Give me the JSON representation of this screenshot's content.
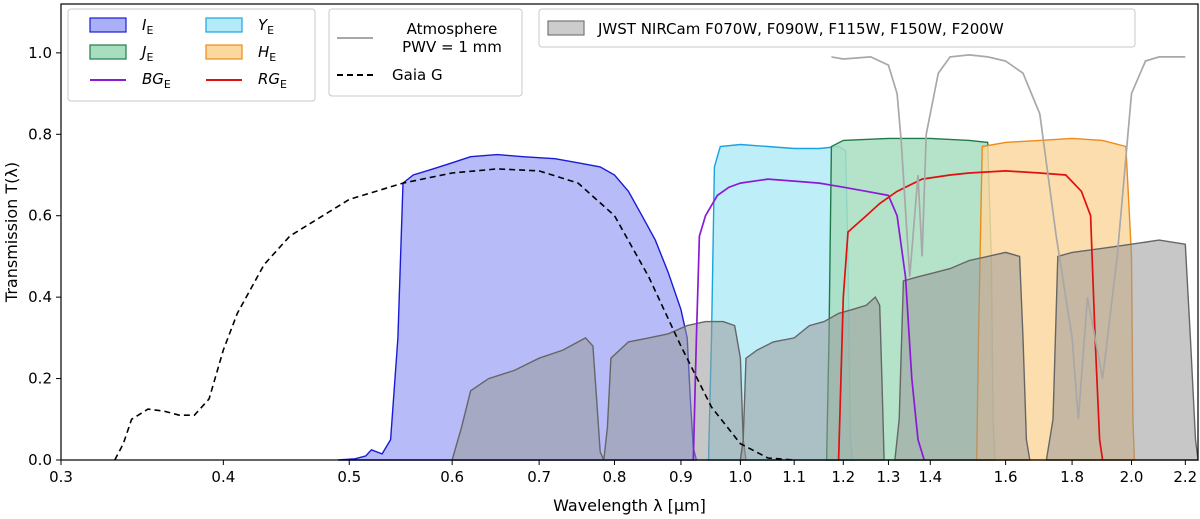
{
  "chart_data": {
    "type": "area",
    "xlabel": "Wavelength  λ [μm]",
    "ylabel": "Transmission  T(λ)",
    "xscale": "log",
    "xlim": [
      0.3,
      2.25
    ],
    "ylim": [
      0.0,
      1.12
    ],
    "grid": false,
    "x_ticks": [
      0.3,
      0.4,
      0.5,
      0.6,
      0.7,
      0.8,
      0.9,
      1.0,
      1.1,
      1.2,
      1.3,
      1.4,
      1.6,
      1.8,
      2.0,
      2.2
    ],
    "x_tick_labels": [
      "0.3",
      "0.4",
      "0.5",
      "0.6",
      "0.7",
      "0.8",
      "0.9",
      "1.0",
      "1.1",
      "1.2",
      "1.3",
      "1.4",
      "1.6",
      "1.8",
      "2.0",
      "2.2"
    ],
    "y_ticks": [
      0.0,
      0.2,
      0.4,
      0.6,
      0.8,
      1.0
    ],
    "y_tick_labels": [
      "0.0",
      "0.2",
      "0.4",
      "0.6",
      "0.8",
      "1.0"
    ],
    "legends": [
      {
        "position": "top-left",
        "entries": [
          {
            "label": "I",
            "subscript": "E",
            "kind": "area",
            "fill": "#aab0f8",
            "edge": "#1a1ad6"
          },
          {
            "label": "Y",
            "subscript": "E",
            "kind": "area",
            "fill": "#b3ecf8",
            "edge": "#1aa3e0"
          },
          {
            "label": "J",
            "subscript": "E",
            "kind": "area",
            "fill": "#a8dec0",
            "edge": "#207a47"
          },
          {
            "label": "H",
            "subscript": "E",
            "kind": "area",
            "fill": "#fbd8a0",
            "edge": "#ee8a18"
          },
          {
            "label": "BG",
            "subscript": "E",
            "kind": "line",
            "color": "#8b1ad6"
          },
          {
            "label": "RG",
            "subscript": "E",
            "kind": "line",
            "color": "#e01010"
          }
        ]
      },
      {
        "position": "top-center",
        "entries": [
          {
            "label": "Atmosphere",
            "label2": "PWV = 1 mm",
            "kind": "line",
            "color": "#a8a8a8"
          },
          {
            "label": "Gaia G",
            "kind": "dashed",
            "color": "#000000"
          }
        ]
      },
      {
        "position": "top-right",
        "entries": [
          {
            "label": "JWST NIRCam F070W, F090W, F115W, F150W, F200W",
            "kind": "area",
            "fill": "#cccccc",
            "edge": "#777777"
          }
        ]
      }
    ],
    "series": [
      {
        "name": "I_E",
        "kind": "area",
        "fill": "#aab0f8",
        "edge": "#1a1ad6",
        "points": [
          [
            0.49,
            0.0
          ],
          [
            0.505,
            0.003
          ],
          [
            0.515,
            0.01
          ],
          [
            0.52,
            0.025
          ],
          [
            0.53,
            0.015
          ],
          [
            0.538,
            0.05
          ],
          [
            0.545,
            0.3
          ],
          [
            0.55,
            0.68
          ],
          [
            0.56,
            0.7
          ],
          [
            0.58,
            0.715
          ],
          [
            0.6,
            0.73
          ],
          [
            0.62,
            0.745
          ],
          [
            0.65,
            0.75
          ],
          [
            0.68,
            0.745
          ],
          [
            0.72,
            0.74
          ],
          [
            0.75,
            0.73
          ],
          [
            0.78,
            0.72
          ],
          [
            0.8,
            0.7
          ],
          [
            0.82,
            0.66
          ],
          [
            0.84,
            0.6
          ],
          [
            0.86,
            0.54
          ],
          [
            0.88,
            0.46
          ],
          [
            0.9,
            0.37
          ],
          [
            0.91,
            0.3
          ],
          [
            0.915,
            0.15
          ],
          [
            0.92,
            0.03
          ],
          [
            0.925,
            0.0
          ]
        ]
      },
      {
        "name": "Y_E",
        "kind": "area",
        "fill": "#b3ecf8",
        "edge": "#1aa3e0",
        "points": [
          [
            0.945,
            0.0
          ],
          [
            0.95,
            0.3
          ],
          [
            0.955,
            0.72
          ],
          [
            0.965,
            0.77
          ],
          [
            1.0,
            0.775
          ],
          [
            1.05,
            0.77
          ],
          [
            1.1,
            0.765
          ],
          [
            1.15,
            0.765
          ],
          [
            1.19,
            0.77
          ],
          [
            1.205,
            0.76
          ],
          [
            1.21,
            0.5
          ],
          [
            1.215,
            0.05
          ],
          [
            1.22,
            0.0
          ]
        ]
      },
      {
        "name": "J_E",
        "kind": "area",
        "fill": "#a8dec0",
        "edge": "#207a47",
        "points": [
          [
            1.165,
            0.0
          ],
          [
            1.17,
            0.3
          ],
          [
            1.175,
            0.77
          ],
          [
            1.2,
            0.785
          ],
          [
            1.3,
            0.79
          ],
          [
            1.4,
            0.79
          ],
          [
            1.5,
            0.785
          ],
          [
            1.55,
            0.78
          ],
          [
            1.56,
            0.5
          ],
          [
            1.565,
            0.1
          ],
          [
            1.57,
            0.0
          ]
        ]
      },
      {
        "name": "H_E",
        "kind": "area",
        "fill": "#fbd8a0",
        "edge": "#ee8a18",
        "points": [
          [
            1.52,
            0.0
          ],
          [
            1.525,
            0.3
          ],
          [
            1.535,
            0.77
          ],
          [
            1.6,
            0.78
          ],
          [
            1.7,
            0.785
          ],
          [
            1.8,
            0.79
          ],
          [
            1.9,
            0.785
          ],
          [
            1.98,
            0.77
          ],
          [
            2.0,
            0.5
          ],
          [
            2.005,
            0.1
          ],
          [
            2.01,
            0.0
          ]
        ]
      },
      {
        "name": "JWST_F070W",
        "kind": "area",
        "fill": "#999999",
        "fill_opacity": 0.55,
        "edge": "#666666",
        "points": [
          [
            0.6,
            0.0
          ],
          [
            0.61,
            0.08
          ],
          [
            0.62,
            0.17
          ],
          [
            0.64,
            0.2
          ],
          [
            0.67,
            0.22
          ],
          [
            0.7,
            0.25
          ],
          [
            0.73,
            0.27
          ],
          [
            0.75,
            0.29
          ],
          [
            0.76,
            0.3
          ],
          [
            0.77,
            0.28
          ],
          [
            0.775,
            0.15
          ],
          [
            0.78,
            0.02
          ],
          [
            0.785,
            0.0
          ]
        ]
      },
      {
        "name": "JWST_F090W",
        "kind": "area",
        "fill": "#999999",
        "fill_opacity": 0.55,
        "edge": "#666666",
        "points": [
          [
            0.785,
            0.0
          ],
          [
            0.79,
            0.08
          ],
          [
            0.795,
            0.25
          ],
          [
            0.82,
            0.29
          ],
          [
            0.85,
            0.3
          ],
          [
            0.88,
            0.31
          ],
          [
            0.91,
            0.33
          ],
          [
            0.94,
            0.34
          ],
          [
            0.97,
            0.34
          ],
          [
            0.99,
            0.33
          ],
          [
            1.0,
            0.25
          ],
          [
            1.005,
            0.05
          ],
          [
            1.01,
            0.0
          ]
        ]
      },
      {
        "name": "JWST_F115W",
        "kind": "area",
        "fill": "#999999",
        "fill_opacity": 0.55,
        "edge": "#666666",
        "points": [
          [
            1.0,
            0.0
          ],
          [
            1.005,
            0.05
          ],
          [
            1.01,
            0.25
          ],
          [
            1.03,
            0.27
          ],
          [
            1.06,
            0.29
          ],
          [
            1.1,
            0.3
          ],
          [
            1.13,
            0.33
          ],
          [
            1.16,
            0.34
          ],
          [
            1.19,
            0.36
          ],
          [
            1.22,
            0.37
          ],
          [
            1.25,
            0.38
          ],
          [
            1.27,
            0.4
          ],
          [
            1.28,
            0.38
          ],
          [
            1.285,
            0.2
          ],
          [
            1.29,
            0.0
          ]
        ]
      },
      {
        "name": "JWST_F150W",
        "kind": "area",
        "fill": "#999999",
        "fill_opacity": 0.55,
        "edge": "#666666",
        "points": [
          [
            1.315,
            0.0
          ],
          [
            1.325,
            0.1
          ],
          [
            1.335,
            0.44
          ],
          [
            1.37,
            0.45
          ],
          [
            1.41,
            0.46
          ],
          [
            1.45,
            0.47
          ],
          [
            1.5,
            0.49
          ],
          [
            1.55,
            0.5
          ],
          [
            1.6,
            0.51
          ],
          [
            1.64,
            0.5
          ],
          [
            1.65,
            0.3
          ],
          [
            1.66,
            0.05
          ],
          [
            1.67,
            0.0
          ]
        ]
      },
      {
        "name": "JWST_F200W",
        "kind": "area",
        "fill": "#999999",
        "fill_opacity": 0.55,
        "edge": "#666666",
        "points": [
          [
            1.72,
            0.0
          ],
          [
            1.74,
            0.1
          ],
          [
            1.755,
            0.5
          ],
          [
            1.8,
            0.51
          ],
          [
            1.9,
            0.52
          ],
          [
            2.0,
            0.53
          ],
          [
            2.1,
            0.54
          ],
          [
            2.2,
            0.53
          ],
          [
            2.22,
            0.3
          ],
          [
            2.24,
            0.05
          ],
          [
            2.25,
            0.0
          ]
        ]
      },
      {
        "name": "BG_E",
        "kind": "line",
        "color": "#8b1ad6",
        "points": [
          [
            0.92,
            0.0
          ],
          [
            0.925,
            0.3
          ],
          [
            0.93,
            0.55
          ],
          [
            0.94,
            0.6
          ],
          [
            0.96,
            0.65
          ],
          [
            0.98,
            0.67
          ],
          [
            1.0,
            0.68
          ],
          [
            1.05,
            0.69
          ],
          [
            1.1,
            0.685
          ],
          [
            1.15,
            0.68
          ],
          [
            1.2,
            0.67
          ],
          [
            1.25,
            0.66
          ],
          [
            1.3,
            0.65
          ],
          [
            1.32,
            0.6
          ],
          [
            1.34,
            0.45
          ],
          [
            1.355,
            0.2
          ],
          [
            1.37,
            0.05
          ],
          [
            1.385,
            0.0
          ]
        ]
      },
      {
        "name": "RG_E",
        "kind": "line",
        "color": "#e01010",
        "points": [
          [
            1.19,
            0.0
          ],
          [
            1.2,
            0.4
          ],
          [
            1.21,
            0.56
          ],
          [
            1.22,
            0.57
          ],
          [
            1.25,
            0.6
          ],
          [
            1.28,
            0.63
          ],
          [
            1.32,
            0.66
          ],
          [
            1.38,
            0.69
          ],
          [
            1.45,
            0.7
          ],
          [
            1.5,
            0.705
          ],
          [
            1.6,
            0.71
          ],
          [
            1.7,
            0.705
          ],
          [
            1.78,
            0.7
          ],
          [
            1.83,
            0.66
          ],
          [
            1.86,
            0.6
          ],
          [
            1.875,
            0.3
          ],
          [
            1.89,
            0.05
          ],
          [
            1.9,
            0.0
          ]
        ]
      },
      {
        "name": "Gaia G",
        "kind": "dashed",
        "color": "#000000",
        "points": [
          [
            0.33,
            0.0
          ],
          [
            0.335,
            0.04
          ],
          [
            0.34,
            0.1
          ],
          [
            0.35,
            0.125
          ],
          [
            0.36,
            0.12
          ],
          [
            0.37,
            0.11
          ],
          [
            0.38,
            0.11
          ],
          [
            0.39,
            0.15
          ],
          [
            0.4,
            0.27
          ],
          [
            0.41,
            0.36
          ],
          [
            0.43,
            0.48
          ],
          [
            0.45,
            0.55
          ],
          [
            0.5,
            0.64
          ],
          [
            0.55,
            0.68
          ],
          [
            0.6,
            0.705
          ],
          [
            0.65,
            0.715
          ],
          [
            0.7,
            0.71
          ],
          [
            0.75,
            0.68
          ],
          [
            0.8,
            0.6
          ],
          [
            0.85,
            0.45
          ],
          [
            0.9,
            0.28
          ],
          [
            0.95,
            0.13
          ],
          [
            1.0,
            0.04
          ],
          [
            1.05,
            0.005
          ],
          [
            1.1,
            0.0
          ]
        ]
      },
      {
        "name": "Atmosphere",
        "kind": "line",
        "color": "#a8a8a8",
        "points": [
          [
            1.175,
            0.99
          ],
          [
            1.2,
            0.985
          ],
          [
            1.26,
            0.99
          ],
          [
            1.3,
            0.97
          ],
          [
            1.32,
            0.9
          ],
          [
            1.33,
            0.78
          ],
          [
            1.35,
            0.45
          ],
          [
            1.37,
            0.7
          ],
          [
            1.38,
            0.5
          ],
          [
            1.39,
            0.8
          ],
          [
            1.42,
            0.95
          ],
          [
            1.45,
            0.99
          ],
          [
            1.5,
            0.995
          ],
          [
            1.55,
            0.99
          ],
          [
            1.6,
            0.98
          ],
          [
            1.65,
            0.95
          ],
          [
            1.7,
            0.85
          ],
          [
            1.75,
            0.55
          ],
          [
            1.8,
            0.3
          ],
          [
            1.82,
            0.1
          ],
          [
            1.85,
            0.4
          ],
          [
            1.9,
            0.2
          ],
          [
            1.95,
            0.5
          ],
          [
            2.0,
            0.9
          ],
          [
            2.05,
            0.98
          ],
          [
            2.1,
            0.99
          ],
          [
            2.2,
            0.99
          ]
        ]
      }
    ]
  }
}
